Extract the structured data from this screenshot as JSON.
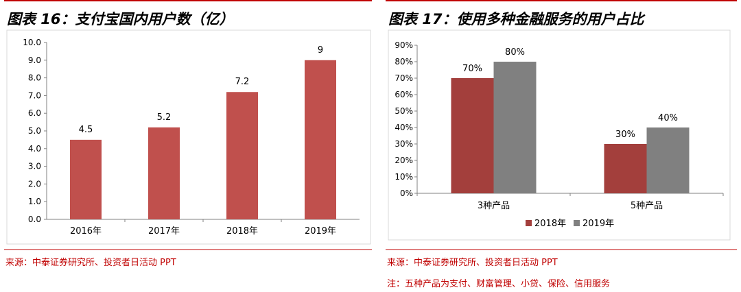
{
  "left": {
    "title": "图表 16：支付宝国内用户数（亿）",
    "source": "来源：中泰证券研究所、投资者日活动 PPT",
    "chart_data": {
      "type": "bar",
      "categories": [
        "2016年",
        "2017年",
        "2018年",
        "2019年"
      ],
      "values": [
        4.5,
        5.2,
        7.2,
        9
      ],
      "data_labels": [
        "4.5",
        "5.2",
        "7.2",
        "9"
      ],
      "ylim": [
        0,
        10
      ],
      "yticks": [
        "0.0",
        "1.0",
        "2.0",
        "3.0",
        "4.0",
        "5.0",
        "6.0",
        "7.0",
        "8.0",
        "9.0",
        "10.0"
      ],
      "grid": false,
      "bar_color": "#c0504d"
    }
  },
  "right": {
    "title": "图表 17：使用多种金融服务的用户占比",
    "source": "来源：中泰证券研究所、投资者日活动 PPT",
    "note": "注：五种产品为支付、财富管理、小贷、保险、信用服务",
    "chart_data": {
      "type": "bar",
      "categories": [
        "3种产品",
        "5种产品"
      ],
      "series": [
        {
          "name": "2018年",
          "values": [
            70,
            30
          ],
          "labels": [
            "70%",
            "30%"
          ],
          "color": "#a33f3c"
        },
        {
          "name": "2019年",
          "values": [
            80,
            40
          ],
          "labels": [
            "80%",
            "40%"
          ],
          "color": "#808080"
        }
      ],
      "ylim": [
        0,
        90
      ],
      "yticks": [
        "0%",
        "10%",
        "20%",
        "30%",
        "40%",
        "50%",
        "60%",
        "70%",
        "80%",
        "90%"
      ],
      "legend_position": "bottom",
      "grid": false
    }
  }
}
